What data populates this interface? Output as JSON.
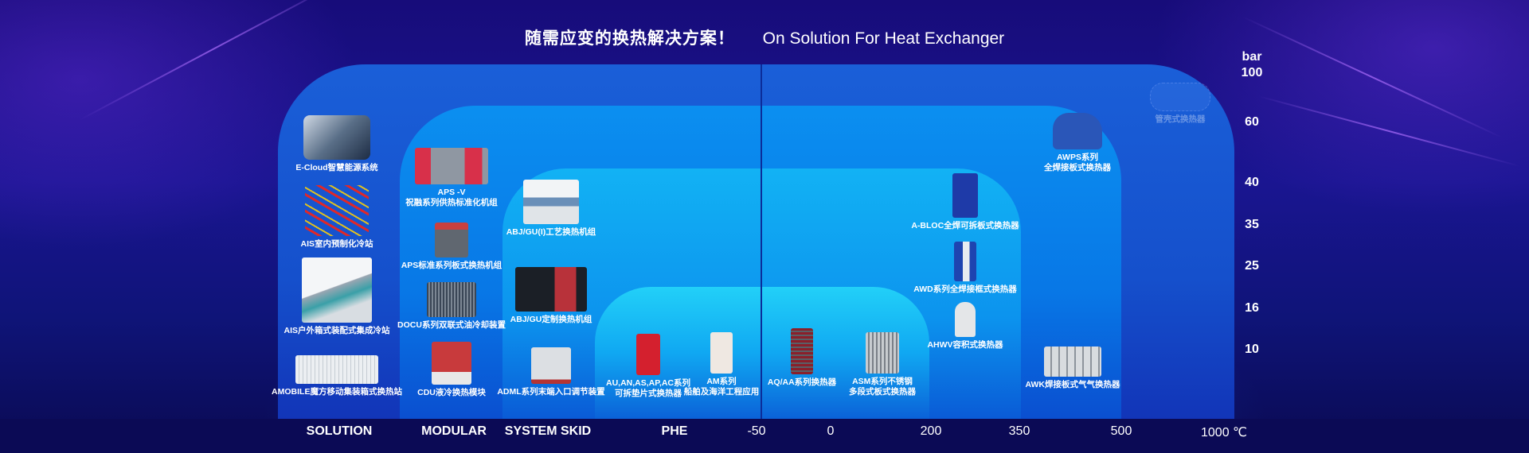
{
  "header": {
    "title_cn": "随需应变的换热解决方案！",
    "title_en": "On Solution For Heat Exchanger"
  },
  "x_axis": {
    "categories": [
      "SOLUTION",
      "MODULAR",
      "SYSTEM SKID",
      "PHE"
    ],
    "ticks": [
      "-50",
      "0",
      "200",
      "350",
      "500",
      "1000 ℃"
    ]
  },
  "y_axis": {
    "unit": "bar",
    "ticks": [
      "100",
      "60",
      "40",
      "35",
      "25",
      "16",
      "10"
    ]
  },
  "solution": [
    {
      "label": [
        "E-Cloud智慧能源系统"
      ]
    },
    {
      "label": [
        "AIS室内预制化冷站"
      ]
    },
    {
      "label": [
        "AIS户外箱式装配式集成冷站"
      ]
    },
    {
      "label": [
        "AMOBILE魔方移动集装箱式换热站"
      ]
    }
  ],
  "modular": [
    {
      "label": [
        "APS -V",
        "祝融系列供热标准化机组"
      ]
    },
    {
      "label": [
        "APS标准系列板式换热机组"
      ]
    },
    {
      "label": [
        "DOCU系列双联式油冷却装置"
      ]
    },
    {
      "label": [
        "CDU液冷换热模块"
      ]
    }
  ],
  "skid": [
    {
      "label": [
        "ABJ/GU(I)工艺换热机组"
      ]
    },
    {
      "label": [
        "ABJ/GU定制换热机组"
      ]
    },
    {
      "label": [
        "ADML系列末端入口调节装置"
      ]
    }
  ],
  "phe": [
    {
      "label": [
        "AU,AN,AS,AP,AC系列",
        "可拆垫片式换热器"
      ]
    },
    {
      "label": [
        "AM系列",
        "船舶及海洋工程应用"
      ]
    },
    {
      "label": [
        "AQ/AA系列换热器"
      ]
    },
    {
      "label": [
        "ASM系列不锈钢",
        "多段式板式换热器"
      ]
    }
  ],
  "welded": [
    {
      "label": [
        "A-BLOC全焊可拆板式换热器"
      ]
    },
    {
      "label": [
        "AWD系列全焊接框式换热器"
      ]
    },
    {
      "label": [
        "AHWV容积式换热器"
      ]
    },
    {
      "label": [
        "AWPS系列",
        "全焊接板式换热器"
      ]
    },
    {
      "label": [
        "AWK焊接板式气气换热器"
      ]
    },
    {
      "label": [
        "管壳式换热器"
      ]
    }
  ],
  "colors": {
    "background": "#0d0b5e",
    "outer_panel": "#1a5fd8",
    "modular_panel": "#0b8ff0",
    "skid_panel": "#12b2f4",
    "phe_panel": "#22d0f8"
  }
}
